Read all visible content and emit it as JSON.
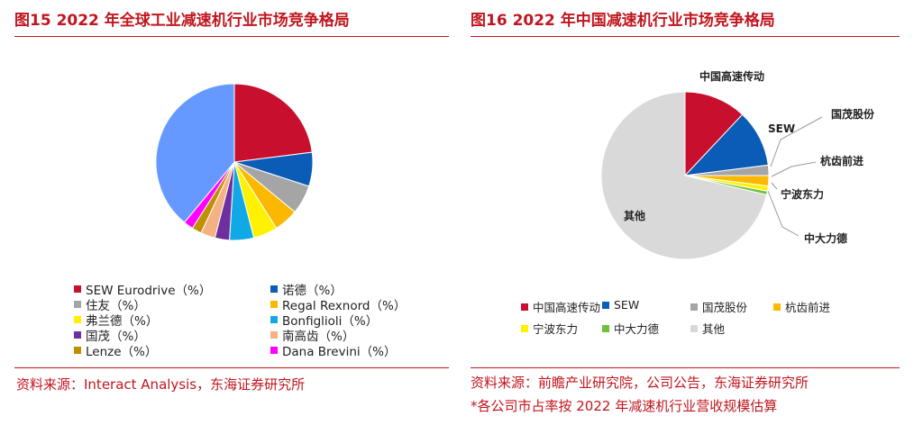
{
  "left": {
    "title": "图15  2022 年全球工业减速机行业市场竞争格局",
    "source": "资料来源：Interact Analysis，东海证券研究所"
  },
  "right": {
    "title": "图16  2022 年中国减速机行业市场竞争格局",
    "source": "资料来源：前瞻产业研究院，公司公告，东海证券研究所",
    "note": "*各公司市占率按 2022 年减速机行业营收规模估算"
  },
  "chart_data": [
    {
      "type": "pie",
      "title": "",
      "series": [
        {
          "name": "SEW Eurodrive（%）",
          "value": 23,
          "color": "#c8102e"
        },
        {
          "name": "诺德（%）",
          "value": 7,
          "color": "#0a5cb6"
        },
        {
          "name": "住友（%）",
          "value": 6,
          "color": "#a5a5a5"
        },
        {
          "name": "Regal Rexnord（%）",
          "value": 5,
          "color": "#fbb800"
        },
        {
          "name": "弗兰德（%）",
          "value": 5,
          "color": "#fff200"
        },
        {
          "name": "Bonfiglioli（%）",
          "value": 5,
          "color": "#10a9e6"
        },
        {
          "name": "国茂（%）",
          "value": 3,
          "color": "#6f2f9f"
        },
        {
          "name": "南高齿（%）",
          "value": 3,
          "color": "#f4b183"
        },
        {
          "name": "Lenze（%）",
          "value": 2,
          "color": "#bf9000"
        },
        {
          "name": "Dana Brevini（%）",
          "value": 2,
          "color": "#ff00ff"
        },
        {
          "name": "",
          "value": 39,
          "color": "#6699ff"
        }
      ]
    },
    {
      "type": "pie",
      "title": "",
      "series": [
        {
          "name": "中国高速传动",
          "value": 12,
          "color": "#c8102e"
        },
        {
          "name": "SEW",
          "value": 11,
          "color": "#0a5cb6"
        },
        {
          "name": "国茂股份",
          "value": 2,
          "color": "#a5a5a5"
        },
        {
          "name": "杭齿前进",
          "value": 2,
          "color": "#fbb800"
        },
        {
          "name": "宁波东力",
          "value": 1,
          "color": "#fff200"
        },
        {
          "name": "中大力德",
          "value": 0.7,
          "color": "#70c040"
        },
        {
          "name": "其他",
          "value": 71.3,
          "color": "#d9d9d9"
        }
      ]
    }
  ]
}
